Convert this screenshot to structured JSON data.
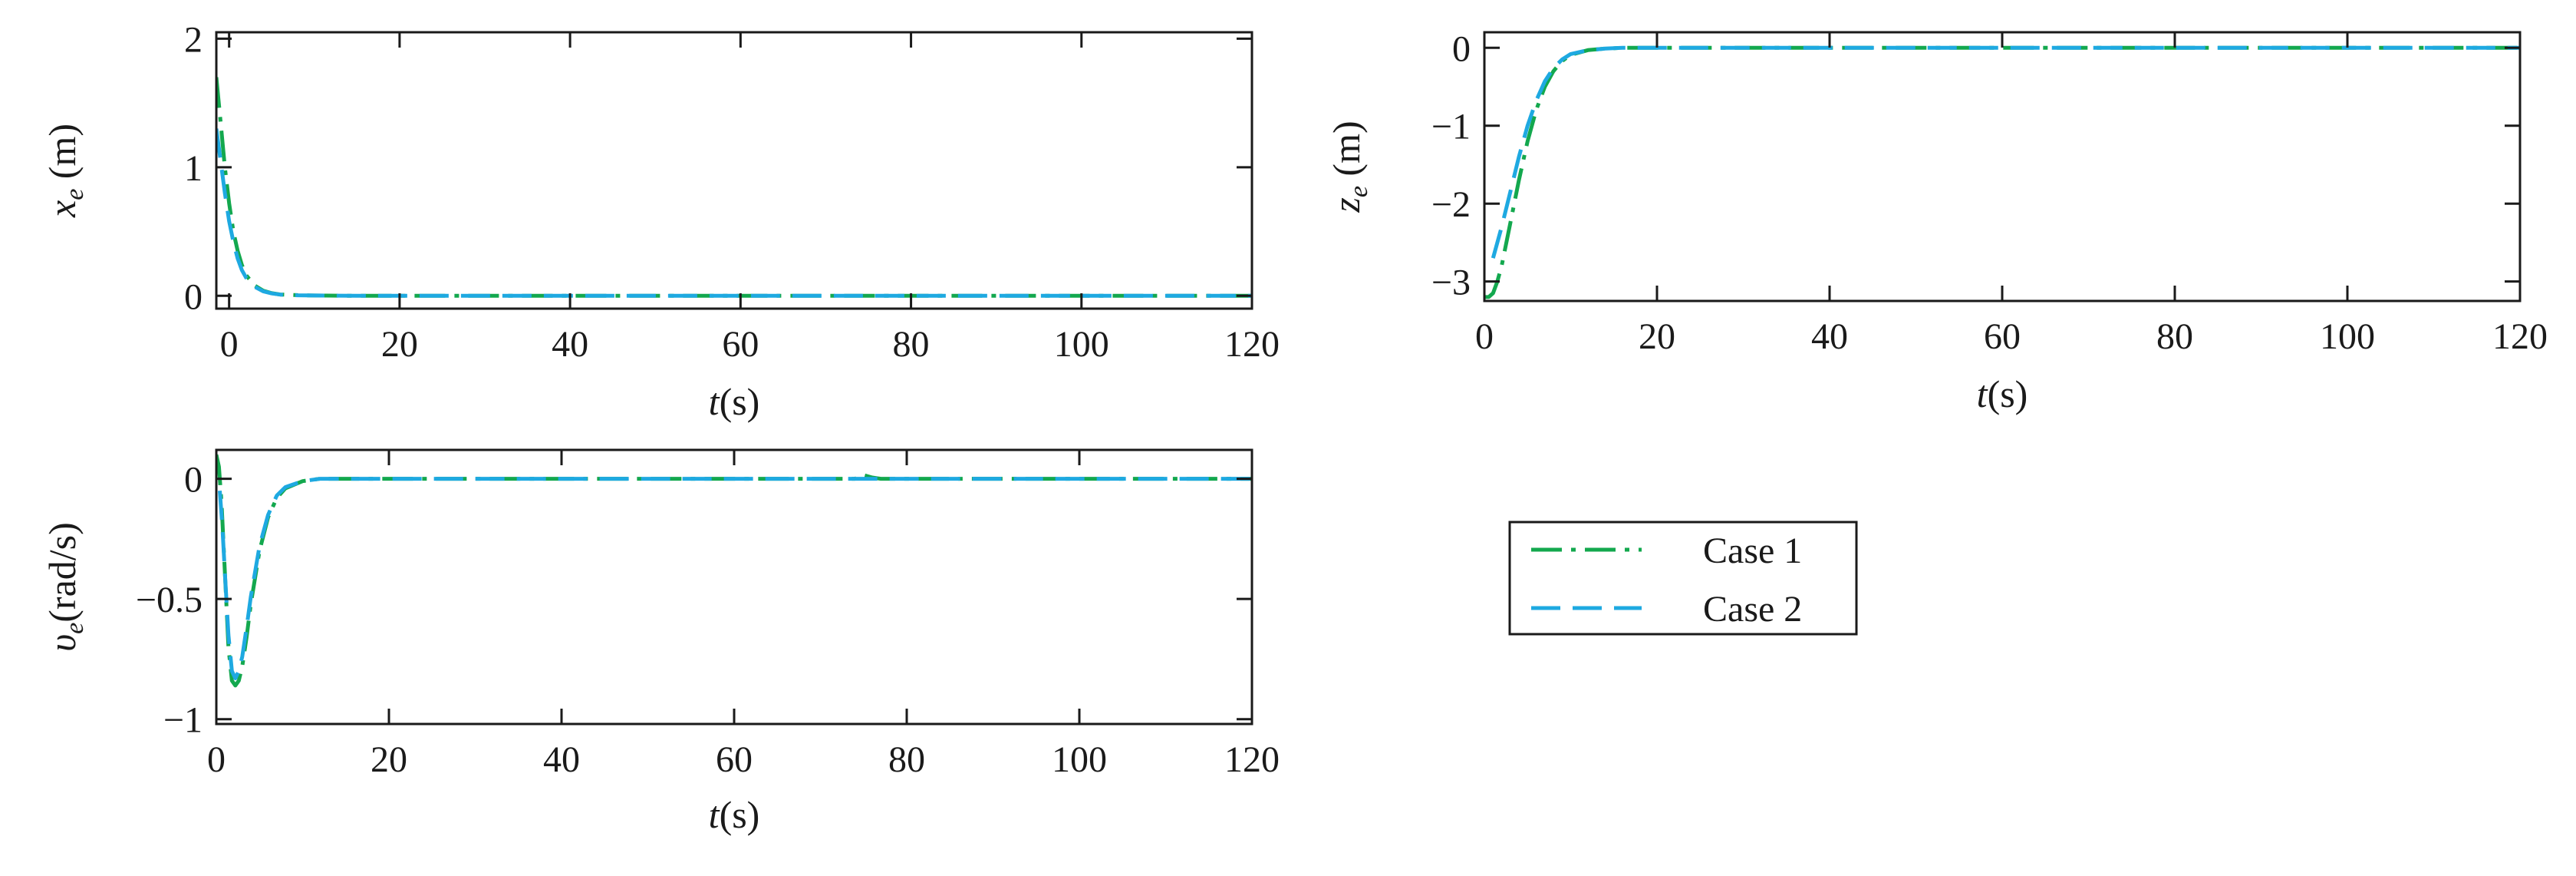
{
  "colors": {
    "case1": "#13a84e",
    "case2": "#1ea9e1",
    "axis": "#1a1a1a"
  },
  "legend": {
    "items": [
      {
        "label": "Case 1",
        "color": "#13a84e",
        "style": "dash-dot"
      },
      {
        "label": "Case 2",
        "color": "#1ea9e1",
        "style": "dashed"
      }
    ]
  },
  "chart_data": [
    {
      "id": "xe",
      "type": "line",
      "ylabel_main": "x",
      "ylabel_sub": "e",
      "ylabel_unit": " (m)",
      "xlabel_main": "t",
      "xlabel_unit": "(s)",
      "xlim": [
        -1.5,
        120
      ],
      "ylim": [
        -0.1,
        2.05
      ],
      "xticks": [
        0,
        20,
        40,
        60,
        80,
        100,
        120
      ],
      "xtick_labels": [
        "0",
        "20",
        "40",
        "60",
        "80",
        "100",
        "120"
      ],
      "yticks": [
        0,
        1,
        2
      ],
      "ytick_labels": [
        "0",
        "1",
        "2"
      ],
      "series": [
        {
          "name": "Case 1",
          "x": [
            -1.5,
            -1,
            -0.5,
            0,
            0.5,
            1,
            1.5,
            2,
            3,
            4,
            5,
            6,
            8,
            10,
            15,
            20,
            40,
            60,
            80,
            100,
            120
          ],
          "y": [
            1.7,
            1.35,
            1.0,
            0.72,
            0.5,
            0.35,
            0.24,
            0.16,
            0.08,
            0.04,
            0.02,
            0.01,
            0.005,
            0.002,
            0,
            0,
            0,
            0,
            0,
            0,
            0
          ]
        },
        {
          "name": "Case 2",
          "x": [
            -1.5,
            -1,
            -0.5,
            0,
            0.5,
            1,
            1.5,
            2,
            3,
            4,
            5,
            6,
            8,
            10,
            15,
            20,
            40,
            60,
            80,
            100,
            120
          ],
          "y": [
            1.3,
            1.05,
            0.8,
            0.58,
            0.42,
            0.29,
            0.2,
            0.14,
            0.07,
            0.035,
            0.018,
            0.009,
            0.004,
            0.002,
            0,
            0,
            0,
            0,
            0,
            0,
            0
          ]
        }
      ]
    },
    {
      "id": "ze",
      "type": "line",
      "ylabel_main": "z",
      "ylabel_sub": "e",
      "ylabel_unit": " (m)",
      "xlabel_main": "t",
      "xlabel_unit": "(s)",
      "xlim": [
        0,
        120
      ],
      "ylim": [
        -3.25,
        0.2
      ],
      "xticks": [
        0,
        20,
        40,
        60,
        80,
        100,
        120
      ],
      "xtick_labels": [
        "0",
        "20",
        "40",
        "60",
        "80",
        "100",
        "120"
      ],
      "yticks": [
        -3,
        -2,
        -1,
        0
      ],
      "ytick_labels": [
        "−3",
        "−2",
        "−1",
        "0"
      ],
      "series": [
        {
          "name": "Case 1",
          "x": [
            0,
            0.5,
            1,
            1.5,
            2,
            3,
            4,
            5,
            6,
            7,
            8,
            9,
            10,
            12,
            14,
            16,
            20,
            40,
            60,
            80,
            100,
            120
          ],
          "y": [
            -3.2,
            -3.2,
            -3.15,
            -3.0,
            -2.8,
            -2.25,
            -1.7,
            -1.2,
            -0.8,
            -0.5,
            -0.3,
            -0.17,
            -0.09,
            -0.03,
            -0.01,
            0,
            0,
            0,
            0,
            0,
            0,
            0
          ]
        },
        {
          "name": "Case 2",
          "x": [
            1,
            1.5,
            2,
            3,
            4,
            5,
            6,
            7,
            8,
            9,
            10,
            12,
            14,
            16,
            20,
            40,
            60,
            80,
            100,
            120
          ],
          "y": [
            -2.7,
            -2.5,
            -2.3,
            -1.85,
            -1.4,
            -1.0,
            -0.68,
            -0.43,
            -0.26,
            -0.15,
            -0.08,
            -0.03,
            -0.01,
            0,
            0,
            0,
            0,
            0,
            0,
            0
          ]
        }
      ]
    },
    {
      "id": "ve",
      "type": "line",
      "ylabel_main": "υ",
      "ylabel_sub": "e",
      "ylabel_unit": "(rad/s)",
      "xlabel_main": "t",
      "xlabel_unit": "(s)",
      "xlim": [
        0,
        120
      ],
      "ylim": [
        -1.02,
        0.12
      ],
      "xticks": [
        0,
        20,
        40,
        60,
        80,
        100,
        120
      ],
      "xtick_labels": [
        "0",
        "20",
        "40",
        "60",
        "80",
        "100",
        "120"
      ],
      "yticks": [
        -1,
        -0.5,
        0
      ],
      "ytick_labels": [
        "−1",
        "−0.5",
        "0"
      ],
      "series": [
        {
          "name": "Case 1",
          "x": [
            0,
            0.3,
            0.6,
            1,
            1.4,
            1.8,
            2.2,
            2.6,
            3,
            3.5,
            4,
            5,
            6,
            7,
            8,
            10,
            12,
            15,
            20,
            40,
            60,
            74,
            75,
            76,
            77,
            80,
            100,
            120
          ],
          "y": [
            0.1,
            0.05,
            -0.1,
            -0.4,
            -0.7,
            -0.84,
            -0.86,
            -0.84,
            -0.78,
            -0.66,
            -0.52,
            -0.3,
            -0.16,
            -0.08,
            -0.04,
            -0.01,
            0,
            0,
            0,
            0,
            0,
            0,
            0.015,
            0.005,
            0,
            0,
            0,
            0
          ]
        },
        {
          "name": "Case 2",
          "x": [
            0.4,
            0.7,
            1,
            1.4,
            1.8,
            2.2,
            2.6,
            3,
            3.5,
            4,
            5,
            6,
            7,
            8,
            10,
            12,
            15,
            20,
            40,
            60,
            80,
            100,
            120
          ],
          "y": [
            -0.05,
            -0.2,
            -0.4,
            -0.65,
            -0.8,
            -0.83,
            -0.8,
            -0.74,
            -0.62,
            -0.49,
            -0.28,
            -0.15,
            -0.07,
            -0.035,
            -0.01,
            0,
            0,
            0,
            0,
            0,
            0,
            0,
            0
          ]
        }
      ]
    }
  ]
}
